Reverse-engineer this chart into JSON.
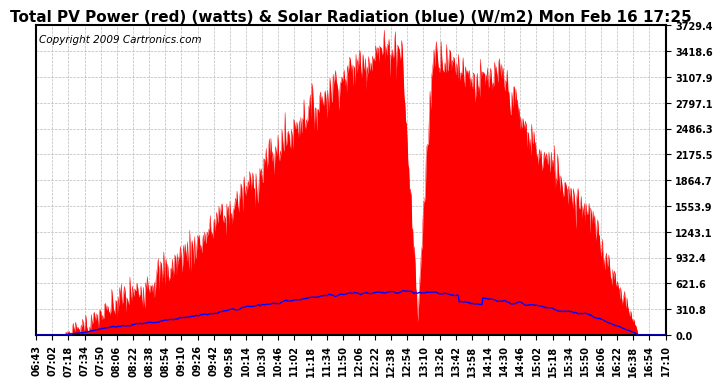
{
  "title": "Total PV Power (red) (watts) & Solar Radiation (blue) (W/m2) Mon Feb 16 17:25",
  "copyright_text": "Copyright 2009 Cartronics.com",
  "background_color": "#ffffff",
  "plot_bg_color": "#ffffff",
  "grid_color": "#aaaaaa",
  "y_max": 3729.4,
  "y_min": 0.0,
  "y_ticks": [
    0.0,
    310.8,
    621.6,
    932.4,
    1243.1,
    1553.9,
    1864.7,
    2175.5,
    2486.3,
    2797.1,
    3107.9,
    3418.6,
    3729.4
  ],
  "x_tick_labels": [
    "06:43",
    "07:02",
    "07:18",
    "07:34",
    "07:50",
    "08:06",
    "08:22",
    "08:38",
    "08:54",
    "09:10",
    "09:26",
    "09:42",
    "09:58",
    "10:14",
    "10:30",
    "10:46",
    "11:02",
    "11:18",
    "11:34",
    "11:50",
    "12:06",
    "12:22",
    "12:38",
    "12:54",
    "13:10",
    "13:26",
    "13:42",
    "13:58",
    "14:14",
    "14:30",
    "14:46",
    "15:02",
    "15:18",
    "15:34",
    "15:50",
    "16:06",
    "16:22",
    "16:38",
    "16:54",
    "17:10"
  ],
  "pv_color": "#ff0000",
  "solar_color": "#0000ff",
  "title_fontsize": 11,
  "copyright_fontsize": 7.5,
  "tick_fontsize": 7,
  "border_color": "#000000"
}
